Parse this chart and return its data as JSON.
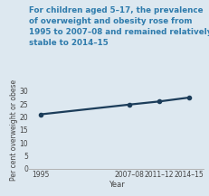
{
  "title_lines": [
    "For children aged 5–17, the prevalence",
    "of overweight and obesity rose from",
    "1995 to 2007–08 and remained relatively",
    "stable to 2014–15"
  ],
  "title_color": "#2e7bac",
  "ylabel": "Per cent overweight or obese",
  "xlabel": "Year",
  "x_positions": [
    0,
    2.4,
    3.2,
    4.0
  ],
  "x_labels": [
    "1995",
    "2007–08",
    "2011–12",
    "2014–15"
  ],
  "y_values": [
    21.0,
    24.8,
    26.0,
    27.5
  ],
  "ylim": [
    0,
    30
  ],
  "yticks": [
    0,
    5,
    10,
    15,
    20,
    25,
    30
  ],
  "line_color": "#1c3d5a",
  "marker_color": "#1c3d5a",
  "bg_color": "#dde8f0",
  "plot_bg_color": "#dde8f0",
  "title_fontsize": 6.3,
  "ylabel_fontsize": 5.5,
  "xlabel_fontsize": 6.0,
  "tick_fontsize": 5.5,
  "line_width": 1.6,
  "marker_size": 3.0
}
